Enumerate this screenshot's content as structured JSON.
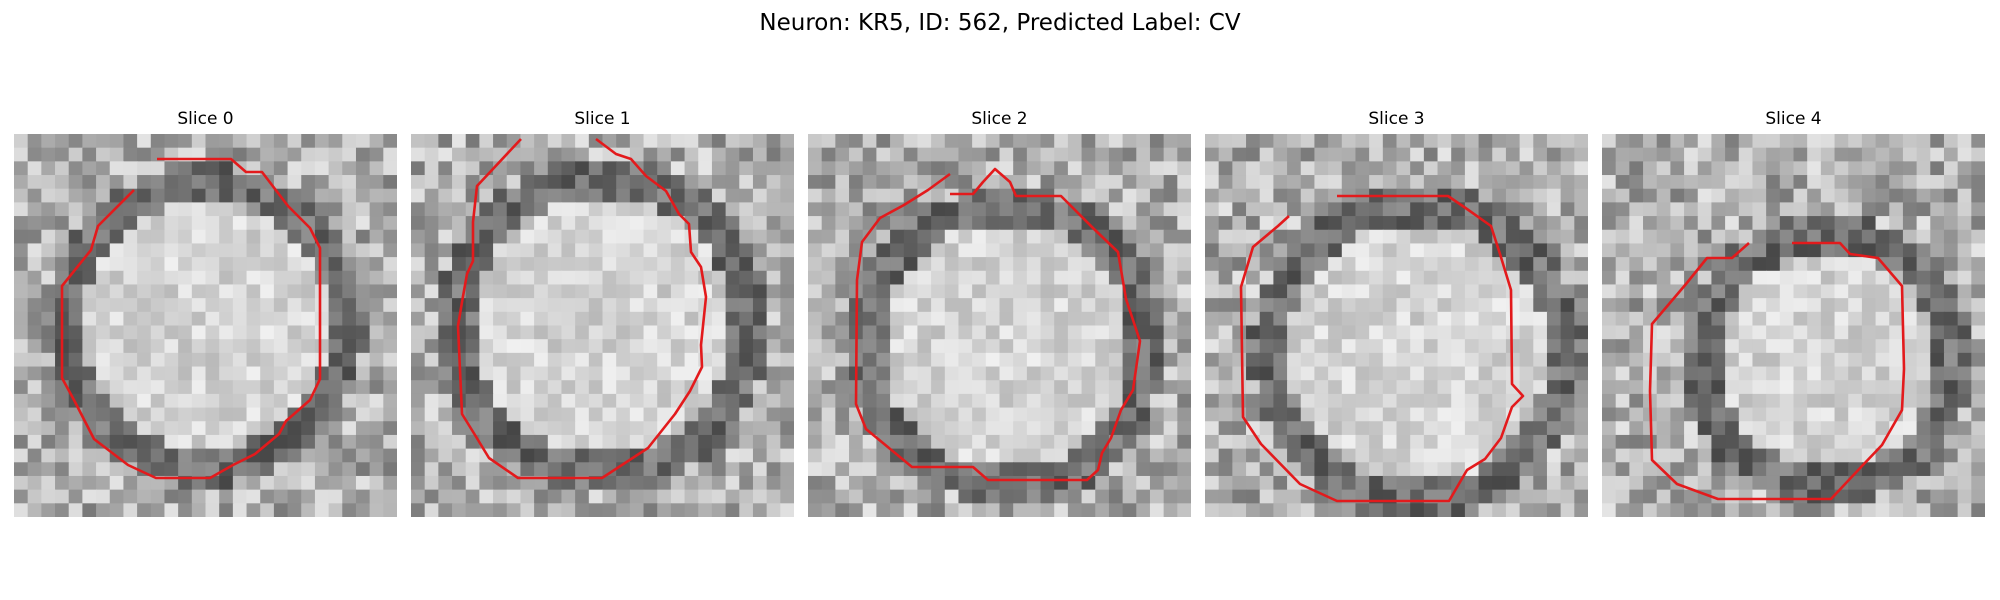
{
  "figure": {
    "title": "Neuron: KR5, ID: 562, Predicted Label: CV",
    "outline_color": "#e31a1c",
    "colormap": "gray"
  },
  "panels": [
    {
      "title": "Slice 0"
    },
    {
      "title": "Slice 1"
    },
    {
      "title": "Slice 2"
    },
    {
      "title": "Slice 3"
    },
    {
      "title": "Slice 4"
    }
  ]
}
